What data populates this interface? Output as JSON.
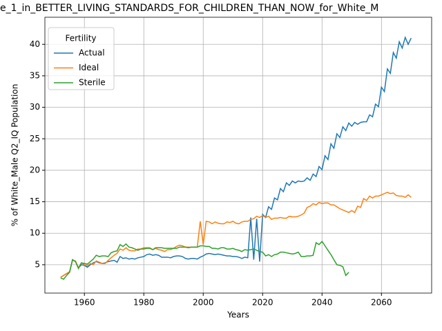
{
  "chart_data": {
    "type": "line",
    "title": "e_1_in_BETTER_LIVING_STANDARDS_FOR_CHILDREN_THAN_NOW_for_White_M",
    "xlabel": "Years",
    "ylabel": "% of White_Male Q2_IQ Population",
    "x": [
      1952,
      1953,
      1954,
      1955,
      1956,
      1957,
      1958,
      1959,
      1960,
      1961,
      1962,
      1963,
      1964,
      1965,
      1966,
      1967,
      1968,
      1969,
      1970,
      1971,
      1972,
      1973,
      1974,
      1975,
      1976,
      1977,
      1978,
      1979,
      1980,
      1981,
      1982,
      1983,
      1984,
      1985,
      1986,
      1987,
      1988,
      1989,
      1990,
      1991,
      1992,
      1993,
      1994,
      1995,
      1996,
      1997,
      1998,
      1999,
      2000,
      2001,
      2002,
      2003,
      2004,
      2005,
      2006,
      2007,
      2008,
      2009,
      2010,
      2011,
      2012,
      2013,
      2014,
      2015,
      2016,
      2017,
      2018,
      2019,
      2020,
      2021,
      2022,
      2023,
      2024,
      2025,
      2026,
      2027,
      2028,
      2029,
      2030,
      2031,
      2032,
      2033,
      2034,
      2035,
      2036,
      2037,
      2038,
      2039,
      2040,
      2041,
      2042,
      2043,
      2044,
      2045,
      2046,
      2047,
      2048,
      2049,
      2050,
      2051,
      2052,
      2053,
      2054,
      2055,
      2056,
      2057,
      2058,
      2059,
      2060,
      2061,
      2062,
      2063,
      2064,
      2065,
      2066,
      2067,
      2068,
      2069,
      2070
    ],
    "series": [
      {
        "name": "Actual",
        "color": "#1f77b4",
        "values": [
          3.0,
          3.3,
          3.6,
          3.8,
          5.8,
          5.5,
          4.5,
          5.0,
          4.9,
          4.6,
          5.0,
          5.3,
          5.5,
          5.3,
          5.2,
          5.3,
          5.5,
          5.6,
          5.7,
          5.4,
          6.3,
          6.0,
          6.1,
          5.9,
          6.0,
          5.9,
          6.1,
          6.2,
          6.3,
          6.6,
          6.7,
          6.5,
          6.6,
          6.5,
          6.2,
          6.2,
          6.2,
          6.1,
          6.3,
          6.4,
          6.4,
          6.3,
          6.0,
          5.9,
          6.0,
          6.0,
          5.9,
          6.2,
          6.4,
          6.7,
          6.8,
          6.7,
          6.6,
          6.7,
          6.6,
          6.5,
          6.4,
          6.4,
          6.3,
          6.3,
          6.2,
          6.0,
          6.2,
          6.1,
          12.5,
          5.8,
          12.3,
          5.5,
          13.0,
          12.5,
          14.2,
          13.8,
          15.6,
          15.3,
          17.1,
          16.6,
          18.0,
          17.6,
          18.3,
          18.0,
          18.3,
          18.2,
          18.3,
          18.8,
          18.4,
          19.4,
          19.0,
          20.6,
          20.1,
          22.3,
          21.7,
          24.2,
          23.5,
          25.8,
          25.2,
          26.9,
          26.3,
          27.5,
          27.0,
          27.6,
          27.3,
          27.6,
          27.7,
          27.7,
          28.8,
          28.5,
          30.5,
          30.1,
          33.2,
          32.5,
          36.1,
          35.4,
          38.7,
          37.8,
          40.4,
          39.4,
          41.1,
          40.0,
          41.0
        ]
      },
      {
        "name": "Ideal",
        "color": "#ff7f0e",
        "values": [
          3.0,
          3.3,
          3.6,
          3.9,
          5.7,
          5.6,
          4.5,
          5.3,
          5.0,
          4.8,
          5.2,
          5.0,
          5.6,
          5.4,
          5.2,
          5.2,
          5.7,
          6.1,
          6.5,
          6.8,
          7.5,
          7.3,
          7.7,
          7.3,
          7.2,
          7.2,
          7.5,
          7.5,
          7.7,
          7.7,
          7.7,
          7.4,
          7.6,
          7.4,
          7.3,
          7.1,
          7.4,
          7.4,
          7.6,
          7.9,
          8.1,
          8.0,
          7.8,
          7.8,
          7.8,
          7.8,
          7.8,
          11.9,
          8.2,
          11.9,
          11.8,
          11.5,
          11.8,
          11.6,
          11.5,
          11.5,
          11.8,
          11.7,
          11.9,
          11.6,
          11.5,
          11.8,
          11.9,
          11.9,
          12.2,
          12.3,
          12.7,
          12.5,
          12.8,
          12.5,
          12.7,
          12.2,
          12.4,
          12.4,
          12.5,
          12.4,
          12.4,
          12.7,
          12.6,
          12.6,
          12.7,
          12.9,
          13.2,
          14.1,
          14.3,
          14.7,
          14.5,
          14.9,
          14.7,
          14.8,
          14.8,
          14.5,
          14.5,
          14.2,
          13.9,
          13.7,
          13.5,
          13.3,
          13.6,
          13.3,
          14.3,
          14.1,
          15.5,
          15.2,
          15.9,
          15.6,
          15.9,
          15.9,
          16.1,
          16.3,
          16.5,
          16.3,
          16.4,
          16.0,
          15.9,
          15.9,
          15.7,
          16.1,
          15.7
        ]
      },
      {
        "name": "Sterile",
        "color": "#2ca02c",
        "values": [
          2.9,
          2.7,
          3.3,
          3.8,
          5.8,
          5.5,
          4.4,
          5.3,
          5.2,
          5.1,
          5.5,
          5.9,
          6.5,
          6.3,
          6.4,
          6.4,
          6.3,
          6.9,
          7.1,
          7.2,
          8.2,
          7.9,
          8.3,
          7.8,
          7.7,
          7.5,
          7.3,
          7.5,
          7.5,
          7.6,
          7.6,
          7.4,
          7.7,
          7.7,
          7.7,
          7.6,
          7.6,
          7.6,
          7.6,
          7.6,
          7.8,
          7.8,
          7.8,
          7.7,
          7.8,
          7.8,
          7.8,
          8.0,
          8.0,
          7.9,
          7.9,
          7.6,
          7.6,
          7.5,
          7.7,
          7.7,
          7.5,
          7.5,
          7.6,
          7.4,
          7.3,
          7.1,
          7.4,
          7.3,
          7.4,
          7.5,
          7.3,
          7.1,
          7.0,
          6.4,
          6.6,
          6.3,
          6.6,
          6.7,
          7.0,
          7.0,
          6.9,
          6.8,
          6.7,
          6.8,
          7.0,
          6.3,
          6.3,
          6.4,
          6.4,
          6.5,
          8.5,
          8.2,
          8.7,
          8.0,
          7.3,
          6.6,
          5.8,
          5.0,
          4.9,
          4.7,
          3.3,
          3.8,
          null,
          null,
          null,
          null,
          null,
          null,
          null,
          null,
          null,
          null,
          null,
          null,
          null,
          null,
          null,
          null,
          null,
          null,
          null,
          null,
          null
        ]
      }
    ],
    "legend_title": "Fertility",
    "legend_position": "upper left",
    "xlim": [
      1946.7,
      2076.9
    ],
    "xticks": [
      1960,
      1980,
      2000,
      2020,
      2040,
      2060
    ],
    "ylim": [
      0.5,
      44.3
    ],
    "yticks": [
      5,
      10,
      15,
      20,
      25,
      30,
      35,
      40
    ],
    "grid": true
  }
}
